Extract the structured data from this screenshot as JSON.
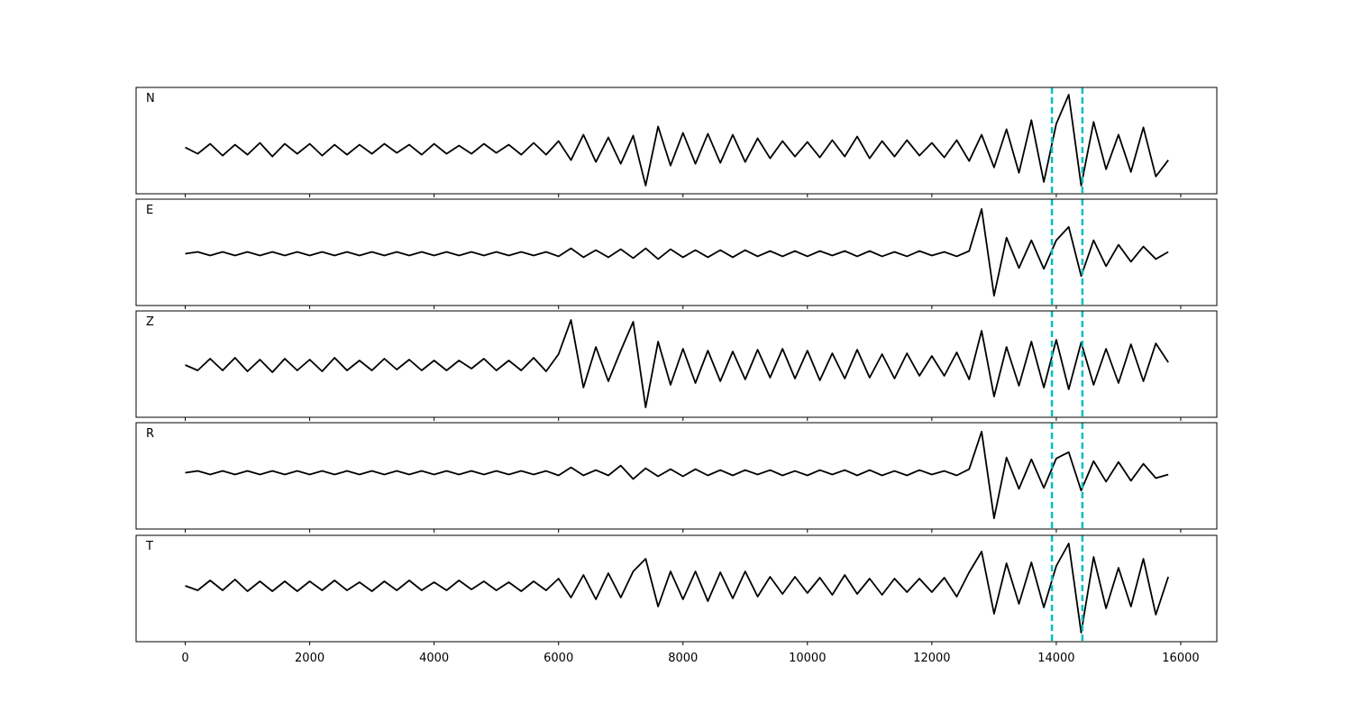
{
  "chart_data": {
    "type": "line",
    "x": [
      0,
      200,
      400,
      600,
      800,
      1000,
      1200,
      1400,
      1600,
      1800,
      2000,
      2200,
      2400,
      2600,
      2800,
      3000,
      3200,
      3400,
      3600,
      3800,
      4000,
      4200,
      4400,
      4600,
      4800,
      5000,
      5200,
      5400,
      5600,
      5800,
      6000,
      6200,
      6400,
      6600,
      6800,
      7000,
      7200,
      7400,
      7600,
      7800,
      8000,
      8200,
      8400,
      8600,
      8800,
      9000,
      9200,
      9400,
      9600,
      9800,
      10000,
      10200,
      10400,
      10600,
      10800,
      11000,
      11200,
      11400,
      11600,
      11800,
      12000,
      12200,
      12400,
      12600,
      12800,
      13000,
      13200,
      13400,
      13600,
      13800,
      14000,
      14200,
      14400,
      14600,
      14800,
      15000,
      15200,
      15400,
      15600,
      15800
    ],
    "xlim": [
      -790,
      16580
    ],
    "xticks": [
      0,
      2000,
      4000,
      6000,
      8000,
      10000,
      12000,
      14000,
      16000
    ],
    "vlines": [
      13930,
      14420
    ],
    "vline_color": "#00bfbf",
    "series": [
      {
        "name": "N",
        "color": "#000000",
        "ylim": [
          -4.9,
          6.8
        ],
        "values": [
          0.2,
          -0.5,
          0.6,
          -0.7,
          0.5,
          -0.6,
          0.7,
          -0.8,
          0.6,
          -0.5,
          0.6,
          -0.7,
          0.5,
          -0.6,
          0.5,
          -0.5,
          0.6,
          -0.4,
          0.5,
          -0.6,
          0.6,
          -0.5,
          0.4,
          -0.5,
          0.6,
          -0.4,
          0.5,
          -0.6,
          0.7,
          -0.6,
          0.9,
          -1.2,
          1.6,
          -1.4,
          1.3,
          -1.6,
          1.5,
          -4.0,
          2.5,
          -1.8,
          1.8,
          -1.6,
          1.7,
          -1.5,
          1.6,
          -1.4,
          1.2,
          -1.0,
          0.9,
          -0.8,
          0.8,
          -0.9,
          1.0,
          -0.8,
          1.4,
          -1.0,
          0.9,
          -0.8,
          1.0,
          -0.7,
          0.7,
          -0.9,
          1.0,
          -1.3,
          1.6,
          -2.0,
          2.2,
          -2.6,
          3.2,
          -3.6,
          2.8,
          6.0,
          -4.0,
          3.0,
          -2.2,
          1.6,
          -2.5,
          2.4,
          -3.0,
          -1.2
        ]
      },
      {
        "name": "E",
        "color": "#000000",
        "ylim": [
          -5.8,
          6.1
        ],
        "values": [
          0,
          0.2,
          -0.2,
          0.2,
          -0.2,
          0.2,
          -0.2,
          0.2,
          -0.2,
          0.2,
          -0.2,
          0.2,
          -0.2,
          0.2,
          -0.2,
          0.2,
          -0.2,
          0.2,
          -0.2,
          0.2,
          -0.2,
          0.2,
          -0.2,
          0.2,
          -0.2,
          0.2,
          -0.2,
          0.2,
          -0.2,
          0.2,
          -0.3,
          0.6,
          -0.4,
          0.4,
          -0.4,
          0.5,
          -0.5,
          0.6,
          -0.6,
          0.5,
          -0.4,
          0.4,
          -0.4,
          0.4,
          -0.4,
          0.4,
          -0.3,
          0.3,
          -0.3,
          0.3,
          -0.3,
          0.3,
          -0.2,
          0.3,
          -0.3,
          0.3,
          -0.3,
          0.2,
          -0.3,
          0.3,
          -0.2,
          0.2,
          -0.3,
          0.3,
          5.0,
          -4.7,
          1.8,
          -1.6,
          1.5,
          -1.7,
          1.5,
          3.0,
          -2.5,
          1.5,
          -1.4,
          1.0,
          -0.9,
          0.8,
          -0.6,
          0.2
        ]
      },
      {
        "name": "Z",
        "color": "#000000",
        "ylim": [
          -5.8,
          6.0
        ],
        "values": [
          0,
          -0.6,
          0.7,
          -0.6,
          0.8,
          -0.7,
          0.6,
          -0.8,
          0.7,
          -0.6,
          0.6,
          -0.7,
          0.8,
          -0.6,
          0.5,
          -0.6,
          0.7,
          -0.5,
          0.6,
          -0.6,
          0.5,
          -0.6,
          0.5,
          -0.4,
          0.7,
          -0.6,
          0.5,
          -0.6,
          0.8,
          -0.7,
          1.2,
          5.0,
          -2.5,
          2.0,
          -1.8,
          1.6,
          4.8,
          -4.7,
          2.6,
          -2.2,
          1.8,
          -2.0,
          1.6,
          -1.8,
          1.5,
          -1.6,
          1.7,
          -1.4,
          1.8,
          -1.5,
          1.6,
          -1.7,
          1.3,
          -1.5,
          1.7,
          -1.4,
          1.2,
          -1.5,
          1.3,
          -1.2,
          1.0,
          -1.2,
          1.4,
          -1.6,
          3.8,
          -3.5,
          2.0,
          -2.3,
          2.6,
          -2.5,
          2.8,
          -2.7,
          2.5,
          -2.2,
          1.8,
          -2.0,
          2.3,
          -1.8,
          2.4,
          0.3
        ]
      },
      {
        "name": "R",
        "color": "#000000",
        "ylim": [
          -6.3,
          5.6
        ],
        "values": [
          0,
          0.2,
          -0.2,
          0.2,
          -0.2,
          0.2,
          -0.2,
          0.2,
          -0.2,
          0.2,
          -0.2,
          0.2,
          -0.2,
          0.2,
          -0.2,
          0.2,
          -0.2,
          0.2,
          -0.2,
          0.2,
          -0.2,
          0.2,
          -0.2,
          0.2,
          -0.2,
          0.2,
          -0.2,
          0.2,
          -0.2,
          0.2,
          -0.3,
          0.6,
          -0.3,
          0.3,
          -0.3,
          0.8,
          -0.7,
          0.5,
          -0.4,
          0.4,
          -0.4,
          0.4,
          -0.3,
          0.3,
          -0.3,
          0.3,
          -0.2,
          0.3,
          -0.3,
          0.2,
          -0.3,
          0.3,
          -0.2,
          0.3,
          -0.3,
          0.3,
          -0.3,
          0.2,
          -0.3,
          0.3,
          -0.2,
          0.2,
          -0.3,
          0.4,
          4.6,
          -5.1,
          1.7,
          -1.8,
          1.5,
          -1.7,
          1.6,
          2.3,
          -2.0,
          1.3,
          -1.0,
          1.2,
          -0.9,
          1.0,
          -0.6,
          -0.2
        ]
      },
      {
        "name": "T",
        "color": "#000000",
        "ylim": [
          -6.2,
          5.6
        ],
        "values": [
          0,
          -0.5,
          0.6,
          -0.5,
          0.7,
          -0.6,
          0.5,
          -0.6,
          0.5,
          -0.6,
          0.5,
          -0.5,
          0.6,
          -0.5,
          0.4,
          -0.6,
          0.5,
          -0.5,
          0.6,
          -0.5,
          0.4,
          -0.5,
          0.6,
          -0.4,
          0.5,
          -0.5,
          0.4,
          -0.6,
          0.5,
          -0.5,
          0.8,
          -1.3,
          1.2,
          -1.5,
          1.4,
          -1.3,
          1.6,
          3.0,
          -2.3,
          1.6,
          -1.5,
          1.6,
          -1.7,
          1.5,
          -1.4,
          1.6,
          -1.2,
          1.0,
          -0.9,
          1.0,
          -0.8,
          0.9,
          -1.0,
          1.2,
          -0.9,
          0.8,
          -1.0,
          0.8,
          -0.7,
          0.8,
          -0.7,
          0.9,
          -1.2,
          1.5,
          3.8,
          -3.1,
          2.5,
          -2.0,
          2.6,
          -2.4,
          2.2,
          4.7,
          -5.2,
          3.2,
          -2.5,
          2.0,
          -2.3,
          3.0,
          -3.2,
          1.0
        ]
      }
    ]
  }
}
